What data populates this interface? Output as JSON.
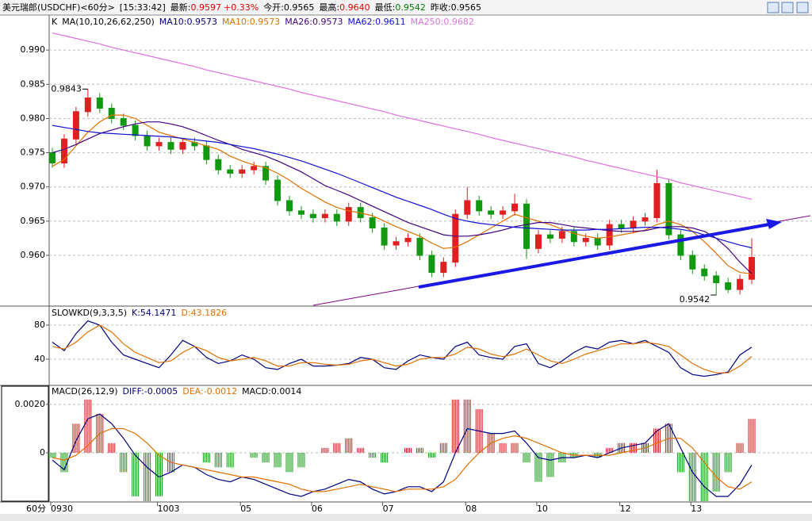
{
  "header": {
    "title": "美元瑞郎(USDCHF)<60分>",
    "time": "[15:33:42]",
    "items": [
      {
        "label": "最新:",
        "value": "0.9597",
        "color": "#e00000"
      },
      {
        "value": "+0.33%",
        "color": "#e00000"
      },
      {
        "label": "今开:",
        "value": "0.9565",
        "color": "#000000"
      },
      {
        "label": "最高:",
        "value": "0.9640",
        "color": "#e00000"
      },
      {
        "label": "最低:",
        "value": "0.9542",
        "color": "#008000"
      },
      {
        "label": "昨收:",
        "value": "0.9565",
        "color": "#000000"
      }
    ]
  },
  "chart_data": [
    {
      "type": "candlestick",
      "legend_prefix": [
        "K",
        "MA(10,10,26,62,250)",
        "MA10:0.9573"
      ],
      "legend_prefix_colors": [
        "#000000",
        "#000000",
        "#000080"
      ],
      "xlabel": "60分",
      "up_color": "#e02020",
      "down_color": "#119911",
      "grid": true,
      "ylim": [
        0.9527,
        0.995
      ],
      "yticks": [
        {
          "value": 0.96,
          "label": "0.960"
        },
        0.965,
        {
          "value": 0.97,
          "label": "0.970"
        },
        0.975,
        {
          "value": 0.98,
          "label": "0.980"
        },
        0.985,
        {
          "value": 0.99,
          "label": "0.990"
        }
      ],
      "categories": [
        "0930",
        null,
        null,
        null,
        null,
        null,
        null,
        null,
        null,
        "1003",
        null,
        null,
        null,
        null,
        null,
        null,
        "05",
        null,
        null,
        null,
        null,
        null,
        "06",
        null,
        null,
        null,
        null,
        null,
        "07",
        null,
        null,
        null,
        null,
        null,
        null,
        "08",
        null,
        null,
        null,
        null,
        null,
        "10",
        null,
        null,
        null,
        null,
        null,
        null,
        "12",
        null,
        null,
        null,
        null,
        null,
        "13",
        null,
        null,
        null,
        null,
        null
      ],
      "ohlc": [
        [
          0.975,
          0.9757,
          0.9728,
          0.9735
        ],
        [
          0.9735,
          0.9777,
          0.9728,
          0.977
        ],
        [
          0.977,
          0.9817,
          0.9763,
          0.981
        ],
        [
          0.981,
          0.9843,
          0.9803,
          0.983
        ],
        [
          0.983,
          0.9837,
          0.9808,
          0.9815
        ],
        [
          0.9815,
          0.9822,
          0.9793,
          0.98
        ],
        [
          0.98,
          0.9807,
          0.9783,
          0.979
        ],
        [
          0.979,
          0.9797,
          0.9768,
          0.9775
        ],
        [
          0.9775,
          0.9782,
          0.9753,
          0.976
        ],
        [
          0.976,
          0.9772,
          0.9753,
          0.9765
        ],
        [
          0.9765,
          0.9772,
          0.9748,
          0.9755
        ],
        [
          0.9755,
          0.9772,
          0.9748,
          0.9765
        ],
        [
          0.9765,
          0.9772,
          0.9753,
          0.976
        ],
        [
          0.976,
          0.9767,
          0.9733,
          0.974
        ],
        [
          0.974,
          0.9747,
          0.9718,
          0.9725
        ],
        [
          0.9725,
          0.9732,
          0.9713,
          0.972
        ],
        [
          0.972,
          0.9732,
          0.9713,
          0.9725
        ],
        [
          0.9725,
          0.9737,
          0.9718,
          0.973
        ],
        [
          0.973,
          0.9737,
          0.9703,
          0.971
        ],
        [
          0.971,
          0.9717,
          0.9673,
          0.968
        ],
        [
          0.968,
          0.9687,
          0.9658,
          0.9665
        ],
        [
          0.9665,
          0.9672,
          0.9653,
          0.966
        ],
        [
          0.966,
          0.9667,
          0.9648,
          0.9655
        ],
        [
          0.9655,
          0.9667,
          0.9648,
          0.966
        ],
        [
          0.966,
          0.9667,
          0.9643,
          0.965
        ],
        [
          0.965,
          0.9677,
          0.9643,
          0.967
        ],
        [
          0.967,
          0.9677,
          0.9648,
          0.9655
        ],
        [
          0.9655,
          0.9662,
          0.9633,
          0.964
        ],
        [
          0.964,
          0.9647,
          0.9608,
          0.9615
        ],
        [
          0.9615,
          0.9627,
          0.9608,
          0.962
        ],
        [
          0.962,
          0.9632,
          0.9613,
          0.9625
        ],
        [
          0.9625,
          0.9632,
          0.9593,
          0.96
        ],
        [
          0.96,
          0.9607,
          0.9568,
          0.9575
        ],
        [
          0.9575,
          0.9597,
          0.9568,
          0.959
        ],
        [
          0.959,
          0.9667,
          0.9583,
          0.966
        ],
        [
          0.966,
          0.97,
          0.9653,
          0.968
        ],
        [
          0.968,
          0.9687,
          0.9658,
          0.9665
        ],
        [
          0.9665,
          0.9672,
          0.9653,
          0.966
        ],
        [
          0.966,
          0.9672,
          0.9653,
          0.9665
        ],
        [
          0.9665,
          0.969,
          0.9658,
          0.9675
        ],
        [
          0.9675,
          0.9682,
          0.9595,
          0.961
        ],
        [
          0.961,
          0.9637,
          0.9603,
          0.963
        ],
        [
          0.963,
          0.9637,
          0.9618,
          0.9625
        ],
        [
          0.9625,
          0.9642,
          0.9618,
          0.9635
        ],
        [
          0.9635,
          0.9642,
          0.9613,
          0.962
        ],
        [
          0.962,
          0.9632,
          0.9613,
          0.9625
        ],
        [
          0.9625,
          0.9632,
          0.9608,
          0.9615
        ],
        [
          0.9615,
          0.9652,
          0.9608,
          0.9645
        ],
        [
          0.9645,
          0.9652,
          0.9633,
          0.964
        ],
        [
          0.964,
          0.9657,
          0.9633,
          0.965
        ],
        [
          0.965,
          0.9662,
          0.9643,
          0.9655
        ],
        [
          0.9655,
          0.9725,
          0.9648,
          0.9705
        ],
        [
          0.9705,
          0.9712,
          0.9623,
          0.963
        ],
        [
          0.963,
          0.9637,
          0.9593,
          0.96
        ],
        [
          0.96,
          0.9607,
          0.9573,
          0.958
        ],
        [
          0.958,
          0.9587,
          0.9563,
          0.957
        ],
        [
          0.957,
          0.9577,
          0.9542,
          0.956
        ],
        [
          0.956,
          0.9567,
          0.9545,
          0.955
        ],
        [
          0.955,
          0.9572,
          0.9543,
          0.9565
        ],
        [
          0.9565,
          0.9625,
          0.9558,
          0.9597
        ]
      ],
      "series": [
        {
          "name": "MA10:0.9573",
          "color": "#e07000",
          "values": [
            0.973,
            0.974,
            0.976,
            0.978,
            0.9795,
            0.9805,
            0.9805,
            0.98,
            0.979,
            0.978,
            0.9775,
            0.977,
            0.9765,
            0.976,
            0.9755,
            0.9745,
            0.9738,
            0.9732,
            0.9728,
            0.972,
            0.971,
            0.9698,
            0.9688,
            0.9678,
            0.967,
            0.9665,
            0.9662,
            0.9658,
            0.965,
            0.9642,
            0.9635,
            0.9628,
            0.9618,
            0.961,
            0.9612,
            0.962,
            0.963,
            0.964,
            0.965,
            0.966,
            0.9655,
            0.965,
            0.9645,
            0.9638,
            0.9632,
            0.9628,
            0.9625,
            0.9627,
            0.963,
            0.9633,
            0.9637,
            0.9645,
            0.965,
            0.9645,
            0.9635,
            0.962,
            0.9603,
            0.9585,
            0.9575,
            0.9573
          ]
        },
        {
          "name": "MA26:0.9573",
          "color": "#400080",
          "values": [
            0.975,
            0.9755,
            0.9762,
            0.977,
            0.9778,
            0.9783,
            0.9788,
            0.9792,
            0.9795,
            0.9795,
            0.9792,
            0.9788,
            0.9782,
            0.9775,
            0.9768,
            0.9762,
            0.9755,
            0.975,
            0.9745,
            0.9738,
            0.973,
            0.9722,
            0.9712,
            0.9702,
            0.9695,
            0.9688,
            0.968,
            0.9672,
            0.9664,
            0.9656,
            0.9648,
            0.9642,
            0.9636,
            0.963,
            0.9628,
            0.9628,
            0.963,
            0.9633,
            0.9637,
            0.9642,
            0.9645,
            0.9648,
            0.9648,
            0.9645,
            0.9642,
            0.964,
            0.9638,
            0.9636,
            0.9635,
            0.9635,
            0.9636,
            0.964,
            0.9642,
            0.9642,
            0.964,
            0.9635,
            0.9625,
            0.961,
            0.959,
            0.9573
          ]
        },
        {
          "name": "MA62:0.9611",
          "color": "#1010d0",
          "values": [
            0.979,
            0.9787,
            0.9784,
            0.9781,
            0.9779,
            0.9778,
            0.9777,
            0.9776,
            0.9775,
            0.9774,
            0.9773,
            0.9771,
            0.9769,
            0.9767,
            0.9765,
            0.9762,
            0.9759,
            0.9756,
            0.9752,
            0.9748,
            0.9743,
            0.9738,
            0.9732,
            0.9726,
            0.972,
            0.9713,
            0.9706,
            0.9699,
            0.9692,
            0.9685,
            0.9679,
            0.9673,
            0.9667,
            0.966,
            0.9654,
            0.965,
            0.9647,
            0.9645,
            0.9643,
            0.9641,
            0.964,
            0.9639,
            0.9638,
            0.9637,
            0.9637,
            0.9637,
            0.9638,
            0.9638,
            0.9639,
            0.964,
            0.9641,
            0.9641,
            0.964,
            0.9638,
            0.9635,
            0.963,
            0.9625,
            0.962,
            0.9615,
            0.9611
          ]
        },
        {
          "name": "MA250:0.9682",
          "color": "#e070e0",
          "values": [
            0.9925,
            0.9921,
            0.9917,
            0.9913,
            0.9909,
            0.9904,
            0.99,
            0.9896,
            0.9892,
            0.9888,
            0.9884,
            0.988,
            0.9876,
            0.9871,
            0.9867,
            0.9863,
            0.9859,
            0.9855,
            0.9851,
            0.9847,
            0.9843,
            0.9838,
            0.9834,
            0.983,
            0.9826,
            0.9822,
            0.9818,
            0.9814,
            0.981,
            0.9805,
            0.9801,
            0.9797,
            0.9793,
            0.9789,
            0.9785,
            0.9781,
            0.9777,
            0.9772,
            0.9768,
            0.9764,
            0.976,
            0.9756,
            0.9752,
            0.9748,
            0.9744,
            0.9739,
            0.9735,
            0.9731,
            0.9727,
            0.9723,
            0.9719,
            0.9715,
            0.9711,
            0.9706,
            0.9702,
            0.9698,
            0.9694,
            0.969,
            0.9686,
            0.9682
          ]
        }
      ],
      "annotations": [
        {
          "high": 0.9843
        },
        {
          "low": 0.9542
        }
      ]
    },
    {
      "type": "line",
      "title": "SLOWKD(9,3,3,5)",
      "grid": true,
      "ylim": [
        10.2,
        101.4
      ],
      "yticks": [
        40,
        80
      ],
      "series": [
        {
          "name": "K:54.1471",
          "color": "#000080",
          "values": [
            60,
            50,
            70,
            85,
            80,
            60,
            45,
            40,
            35,
            30,
            45,
            62,
            55,
            42,
            35,
            38,
            45,
            40,
            30,
            28,
            35,
            40,
            32,
            32,
            33,
            35,
            42,
            40,
            30,
            28,
            38,
            45,
            42,
            40,
            55,
            60,
            45,
            42,
            40,
            55,
            58,
            35,
            30,
            38,
            48,
            55,
            52,
            60,
            62,
            58,
            62,
            55,
            48,
            30,
            22,
            20,
            22,
            25,
            45,
            54.1471
          ]
        },
        {
          "name": "D:43.1826",
          "color": "#e07000",
          "values": [
            55,
            52,
            60,
            72,
            80,
            72,
            58,
            48,
            42,
            36,
            38,
            48,
            55,
            50,
            42,
            38,
            40,
            42,
            38,
            32,
            32,
            36,
            36,
            34,
            33,
            34,
            38,
            40,
            36,
            32,
            34,
            40,
            42,
            42,
            46,
            54,
            52,
            46,
            43,
            46,
            52,
            45,
            38,
            35,
            40,
            46,
            50,
            54,
            58,
            58,
            60,
            58,
            55,
            45,
            35,
            28,
            24,
            24,
            32,
            43.1826
          ]
        }
      ]
    },
    {
      "type": "combo",
      "title": "MACD(26,12,9)",
      "grid": true,
      "up_color": "#d02020",
      "down_color": "#119911",
      "ylim": [
        -0.00203,
        0.00275
      ],
      "yticks": [
        0,
        {
          "value": 0.002,
          "label": "0.0020"
        }
      ],
      "series": [
        {
          "name": "DIFF:-0.0005",
          "color": "#000080",
          "values": [
            -0.0003,
            -0.0007,
            0.0005,
            0.0014,
            0.0016,
            0.0012,
            0.0006,
            -0.0001,
            -0.0006,
            -0.001,
            -0.0008,
            -0.0005,
            -0.0006,
            -0.0009,
            -0.0011,
            -0.0012,
            -0.001,
            -0.0011,
            -0.0013,
            -0.0015,
            -0.0017,
            -0.0018,
            -0.0016,
            -0.0015,
            -0.0013,
            -0.0011,
            -0.0012,
            -0.0015,
            -0.0017,
            -0.0016,
            -0.0014,
            -0.0014,
            -0.0016,
            -0.0012,
            0.0,
            0.001,
            0.0009,
            0.0008,
            0.0008,
            0.0009,
            0.0004,
            -0.0002,
            -0.0003,
            -0.0002,
            -0.0002,
            -0.0001,
            -0.0002,
            0.0,
            0.0002,
            0.0003,
            0.0004,
            0.0009,
            0.0012,
            0.0002,
            -0.0008,
            -0.0014,
            -0.0018,
            -0.0018,
            -0.0013,
            -0.0005
          ]
        },
        {
          "name": "DEA:-0.0012",
          "color": "#e07000",
          "values": [
            -0.0002,
            -0.0003,
            -0.0001,
            0.0003,
            0.0008,
            0.001,
            0.001,
            0.0008,
            0.0004,
            -0.0001,
            -0.0004,
            -0.0005,
            -0.0006,
            -0.0007,
            -0.0008,
            -0.0009,
            -0.001,
            -0.001,
            -0.0011,
            -0.0012,
            -0.0013,
            -0.0015,
            -0.0016,
            -0.0016,
            -0.0015,
            -0.0014,
            -0.0013,
            -0.0014,
            -0.0015,
            -0.0016,
            -0.0015,
            -0.0015,
            -0.0015,
            -0.0014,
            -0.0011,
            -0.0005,
            0.0,
            0.0004,
            0.0006,
            0.0007,
            0.0006,
            0.0004,
            0.0002,
            0.0,
            -0.0001,
            -0.0001,
            -0.0001,
            -0.0001,
            0.0,
            0.0001,
            0.0002,
            0.0004,
            0.0006,
            0.0006,
            0.0002,
            -0.0004,
            -0.001,
            -0.0014,
            -0.0015,
            -0.0012
          ]
        },
        {
          "name": "MACD:0.0014",
          "color": "#000000",
          "kind": "bar",
          "values": [
            -0.0002,
            -0.0008,
            0.0012,
            0.0022,
            0.0016,
            0.0004,
            -0.0008,
            -0.0018,
            -0.002,
            -0.0018,
            -0.0008,
            0.0,
            0.0,
            -0.0004,
            -0.0006,
            -0.0006,
            0.0,
            -0.0002,
            -0.0004,
            -0.0006,
            -0.0008,
            -0.0006,
            0.0,
            0.0002,
            0.0004,
            0.0006,
            0.0002,
            -0.0002,
            -0.0004,
            0.0,
            0.0002,
            0.0002,
            -0.0002,
            0.0004,
            0.0022,
            0.0022,
            0.0018,
            0.0008,
            0.0004,
            0.0004,
            -0.0004,
            -0.0012,
            -0.001,
            -0.0004,
            -0.0002,
            0.0,
            -0.0002,
            0.0002,
            0.0004,
            0.0004,
            0.0004,
            0.001,
            0.0012,
            -0.0008,
            -0.002,
            -0.002,
            -0.0016,
            -0.0008,
            0.0004,
            0.0014
          ]
        }
      ]
    }
  ]
}
